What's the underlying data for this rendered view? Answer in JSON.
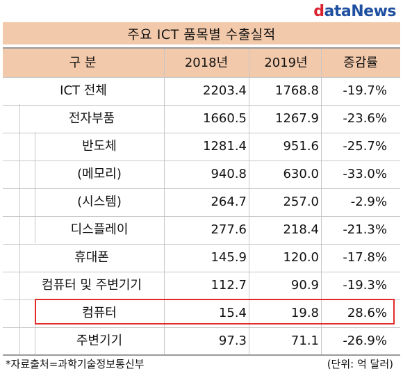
{
  "logo": {
    "d": "d",
    "ata": "ata",
    "news": "News"
  },
  "title": "주요 ICT 품목별 수출실적",
  "header": {
    "category": "구  분",
    "y2018": "2018년",
    "y2019": "2019년",
    "growth": "증감률"
  },
  "rows": [
    {
      "label": "ICT 전체",
      "y2018": "2203.4",
      "y2019": "1768.8",
      "growth": "-19.7%"
    },
    {
      "label": "전자부품",
      "y2018": "1660.5",
      "y2019": "1267.9",
      "growth": "-23.6%"
    },
    {
      "label": "반도체",
      "y2018": "1281.4",
      "y2019": "951.6",
      "growth": "-25.7%"
    },
    {
      "label": "(메모리)",
      "y2018": "940.8",
      "y2019": "630.0",
      "growth": "-33.0%"
    },
    {
      "label": "(시스템)",
      "y2018": "264.7",
      "y2019": "257.0",
      "growth": "-2.9%"
    },
    {
      "label": "디스플레이",
      "y2018": "277.6",
      "y2019": "218.4",
      "growth": "-21.3%"
    },
    {
      "label": "휴대폰",
      "y2018": "145.9",
      "y2019": "120.0",
      "growth": "-17.8%"
    },
    {
      "label": "컴퓨터 및 주변기기",
      "y2018": "112.7",
      "y2019": "90.9",
      "growth": "-19.3%"
    },
    {
      "label": "컴퓨터",
      "y2018": "15.4",
      "y2019": "19.8",
      "growth": "28.6%"
    },
    {
      "label": "주변기기",
      "y2018": "97.3",
      "y2019": "71.1",
      "growth": "-26.9%"
    }
  ],
  "footer": {
    "source": "*자료출처=과학기술정보통신부",
    "unit": "(단위: 억 달러)"
  }
}
